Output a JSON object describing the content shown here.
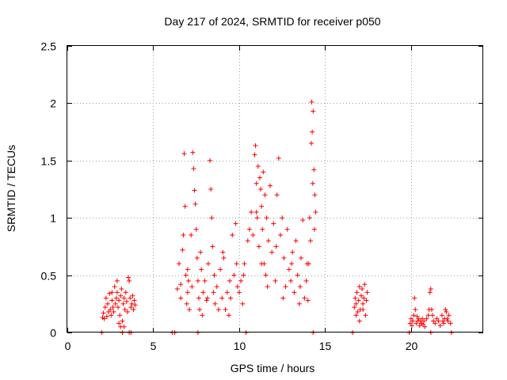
{
  "chart_data": {
    "type": "scatter",
    "title": "Day 217 of 2024, SRMTID for receiver p050",
    "xlabel": "GPS time / hours",
    "ylabel": "SRMTID / TECUs",
    "xlim": [
      0,
      24.2
    ],
    "ylim": [
      0,
      2.5
    ],
    "xticks": [
      "0",
      "5",
      "10",
      "15",
      "20"
    ],
    "yticks": [
      "0",
      "0.5",
      "1",
      "1.5",
      "2",
      "2.5"
    ],
    "grid": true,
    "marker": "plus",
    "color": "#ff0000",
    "series": [
      {
        "name": "p050",
        "points": [
          [
            2.0,
            0.0
          ],
          [
            2.05,
            0.13
          ],
          [
            2.1,
            0.17
          ],
          [
            2.15,
            0.12
          ],
          [
            2.2,
            0.22
          ],
          [
            2.25,
            0.3
          ],
          [
            2.3,
            0.14
          ],
          [
            2.35,
            0.25
          ],
          [
            2.4,
            0.18
          ],
          [
            2.45,
            0.34
          ],
          [
            2.5,
            0.2
          ],
          [
            2.55,
            0.15
          ],
          [
            2.6,
            0.28
          ],
          [
            2.65,
            0.22
          ],
          [
            2.7,
            0.18
          ],
          [
            2.75,
            0.4
          ],
          [
            2.8,
            0.25
          ],
          [
            2.85,
            0.3
          ],
          [
            2.9,
            0.35
          ],
          [
            2.95,
            0.22
          ],
          [
            3.0,
            0.28
          ],
          [
            3.05,
            0.15
          ],
          [
            3.1,
            0.32
          ],
          [
            3.15,
            0.38
          ],
          [
            3.2,
            0.1
          ],
          [
            3.25,
            0.25
          ],
          [
            3.3,
            0.3
          ],
          [
            3.35,
            0.2
          ],
          [
            3.4,
            0.35
          ],
          [
            3.45,
            0.27
          ],
          [
            3.5,
            0.18
          ],
          [
            3.55,
            0.48
          ],
          [
            3.6,
            0.45
          ],
          [
            3.65,
            0.3
          ],
          [
            3.7,
            0.22
          ],
          [
            3.75,
            0.25
          ],
          [
            3.8,
            0.32
          ],
          [
            3.85,
            0.2
          ],
          [
            3.9,
            0.28
          ],
          [
            3.95,
            0.24
          ],
          [
            2.9,
            0.45
          ],
          [
            3.0,
            0.08
          ],
          [
            3.2,
            0.0
          ],
          [
            3.6,
            0.0
          ],
          [
            3.7,
            0.0
          ],
          [
            3.3,
            0.05
          ],
          [
            2.6,
            0.35
          ],
          [
            3.1,
            0.05
          ],
          [
            6.1,
            0.0
          ],
          [
            6.25,
            0.0
          ],
          [
            6.4,
            0.38
          ],
          [
            6.5,
            0.6
          ],
          [
            6.6,
            0.3
          ],
          [
            6.7,
            0.72
          ],
          [
            6.75,
            0.85
          ],
          [
            6.8,
            1.56
          ],
          [
            6.85,
            1.1
          ],
          [
            6.9,
            0.5
          ],
          [
            6.95,
            0.25
          ],
          [
            7.0,
            0.35
          ],
          [
            7.05,
            0.45
          ],
          [
            7.1,
            0.2
          ],
          [
            7.2,
            0.85
          ],
          [
            7.25,
            0.4
          ],
          [
            7.3,
            1.57
          ],
          [
            7.35,
            1.43
          ],
          [
            7.4,
            1.24
          ],
          [
            7.45,
            1.12
          ],
          [
            7.5,
            0.9
          ],
          [
            7.55,
            0.65
          ],
          [
            7.6,
            0.45
          ],
          [
            7.65,
            0.3
          ],
          [
            7.7,
            0.2
          ],
          [
            7.8,
            0.55
          ],
          [
            7.85,
            0.15
          ],
          [
            7.9,
            0.35
          ],
          [
            8.0,
            0.45
          ],
          [
            8.1,
            0.28
          ],
          [
            8.2,
            0.6
          ],
          [
            8.3,
            1.5
          ],
          [
            8.35,
            1.25
          ],
          [
            8.4,
            1.0
          ],
          [
            8.45,
            0.75
          ],
          [
            8.5,
            0.35
          ],
          [
            8.6,
            0.25
          ],
          [
            8.7,
            0.4
          ],
          [
            8.8,
            0.2
          ],
          [
            8.9,
            0.55
          ],
          [
            9.0,
            0.3
          ],
          [
            9.1,
            0.65
          ],
          [
            9.2,
            0.2
          ],
          [
            9.3,
            0.35
          ],
          [
            9.4,
            0.15
          ],
          [
            9.5,
            0.3
          ],
          [
            9.6,
            0.85
          ],
          [
            9.7,
            0.5
          ],
          [
            9.8,
            0.95
          ],
          [
            9.9,
            0.4
          ],
          [
            10.0,
            0.35
          ],
          [
            10.1,
            0.45
          ],
          [
            10.2,
            0.25
          ],
          [
            10.3,
            0.6
          ],
          [
            10.4,
            0.0
          ],
          [
            7.6,
            0.0
          ],
          [
            6.6,
            0.42
          ],
          [
            7.0,
            0.55
          ],
          [
            7.75,
            0.7
          ],
          [
            8.15,
            0.3
          ],
          [
            8.55,
            0.5
          ],
          [
            9.05,
            0.7
          ],
          [
            9.45,
            0.45
          ],
          [
            9.85,
            0.6
          ],
          [
            10.25,
            0.5
          ],
          [
            10.5,
            0.8
          ],
          [
            10.6,
            0.9
          ],
          [
            10.7,
            1.05
          ],
          [
            10.8,
            0.85
          ],
          [
            10.9,
            1.55
          ],
          [
            10.95,
            1.63
          ],
          [
            11.0,
            1.3
          ],
          [
            11.05,
            1.0
          ],
          [
            11.1,
            1.45
          ],
          [
            11.15,
            0.75
          ],
          [
            11.2,
            1.35
          ],
          [
            11.25,
            1.25
          ],
          [
            11.3,
            1.1
          ],
          [
            11.35,
            0.9
          ],
          [
            11.4,
            1.4
          ],
          [
            11.45,
            0.6
          ],
          [
            11.5,
            1.2
          ],
          [
            11.55,
            0.5
          ],
          [
            11.6,
            1.0
          ],
          [
            11.7,
            0.8
          ],
          [
            11.8,
            1.28
          ],
          [
            11.9,
            0.7
          ],
          [
            12.0,
            0.95
          ],
          [
            12.1,
            0.45
          ],
          [
            12.2,
            1.2
          ],
          [
            12.3,
            1.52
          ],
          [
            12.4,
            0.85
          ],
          [
            12.5,
            1.0
          ],
          [
            12.6,
            0.65
          ],
          [
            12.7,
            0.4
          ],
          [
            12.8,
            0.9
          ],
          [
            12.9,
            0.55
          ],
          [
            13.0,
            0.45
          ],
          [
            13.1,
            0.7
          ],
          [
            13.2,
            0.35
          ],
          [
            13.3,
            0.8
          ],
          [
            13.4,
            0.5
          ],
          [
            13.5,
            0.25
          ],
          [
            13.6,
            0.65
          ],
          [
            13.7,
            0.98
          ],
          [
            13.8,
            0.3
          ],
          [
            13.9,
            0.45
          ],
          [
            14.0,
            0.28
          ],
          [
            14.05,
            0.6
          ],
          [
            14.1,
            1.0
          ],
          [
            14.15,
            0.8
          ],
          [
            14.2,
            1.65
          ],
          [
            14.22,
            2.01
          ],
          [
            14.25,
            1.75
          ],
          [
            14.3,
            1.93
          ],
          [
            14.35,
            1.42
          ],
          [
            14.4,
            1.2
          ],
          [
            14.45,
            1.05
          ],
          [
            14.3,
            0.0
          ],
          [
            11.0,
            1.05
          ],
          [
            11.3,
            0.6
          ],
          [
            11.65,
            0.4
          ],
          [
            12.15,
            0.75
          ],
          [
            12.55,
            0.3
          ],
          [
            13.05,
            0.6
          ],
          [
            13.55,
            0.4
          ],
          [
            13.95,
            0.6
          ],
          [
            14.28,
            1.3
          ],
          [
            14.38,
            0.9
          ],
          [
            16.6,
            0.0
          ],
          [
            16.7,
            0.22
          ],
          [
            16.75,
            0.3
          ],
          [
            16.8,
            0.25
          ],
          [
            16.85,
            0.35
          ],
          [
            16.9,
            0.18
          ],
          [
            16.95,
            0.28
          ],
          [
            17.0,
            0.4
          ],
          [
            17.05,
            0.2
          ],
          [
            17.1,
            0.32
          ],
          [
            17.15,
            0.38
          ],
          [
            17.2,
            0.25
          ],
          [
            17.25,
            0.3
          ],
          [
            17.3,
            0.42
          ],
          [
            17.35,
            0.15
          ],
          [
            17.4,
            0.28
          ],
          [
            17.45,
            0.35
          ],
          [
            16.8,
            0.15
          ],
          [
            17.0,
            0.1
          ],
          [
            17.2,
            0.2
          ],
          [
            19.9,
            0.0
          ],
          [
            19.95,
            0.08
          ],
          [
            20.0,
            0.12
          ],
          [
            20.05,
            0.06
          ],
          [
            20.1,
            0.1
          ],
          [
            20.15,
            0.15
          ],
          [
            20.2,
            0.3
          ],
          [
            20.25,
            0.2
          ],
          [
            20.3,
            0.08
          ],
          [
            20.35,
            0.14
          ],
          [
            20.4,
            0.1
          ],
          [
            20.45,
            0.12
          ],
          [
            20.5,
            0.06
          ],
          [
            20.55,
            0.1
          ],
          [
            20.6,
            0.08
          ],
          [
            20.65,
            0.12
          ],
          [
            20.7,
            0.07
          ],
          [
            20.75,
            0.1
          ],
          [
            20.8,
            0.05
          ],
          [
            20.9,
            0.12
          ],
          [
            21.0,
            0.15
          ],
          [
            21.05,
            0.2
          ],
          [
            21.1,
            0.35
          ],
          [
            21.15,
            0.38
          ],
          [
            21.2,
            0.2
          ],
          [
            21.25,
            0.15
          ],
          [
            21.3,
            0.1
          ],
          [
            21.4,
            0.08
          ],
          [
            21.5,
            0.12
          ],
          [
            21.6,
            0.1
          ],
          [
            21.7,
            0.06
          ],
          [
            21.8,
            0.15
          ],
          [
            21.85,
            0.1
          ],
          [
            21.9,
            0.08
          ],
          [
            21.95,
            0.12
          ],
          [
            22.0,
            0.2
          ],
          [
            22.05,
            0.18
          ],
          [
            22.1,
            0.12
          ],
          [
            22.15,
            0.1
          ],
          [
            22.2,
            0.15
          ],
          [
            22.3,
            0.08
          ],
          [
            21.15,
            0.0
          ],
          [
            22.35,
            0.0
          ]
        ]
      }
    ]
  }
}
